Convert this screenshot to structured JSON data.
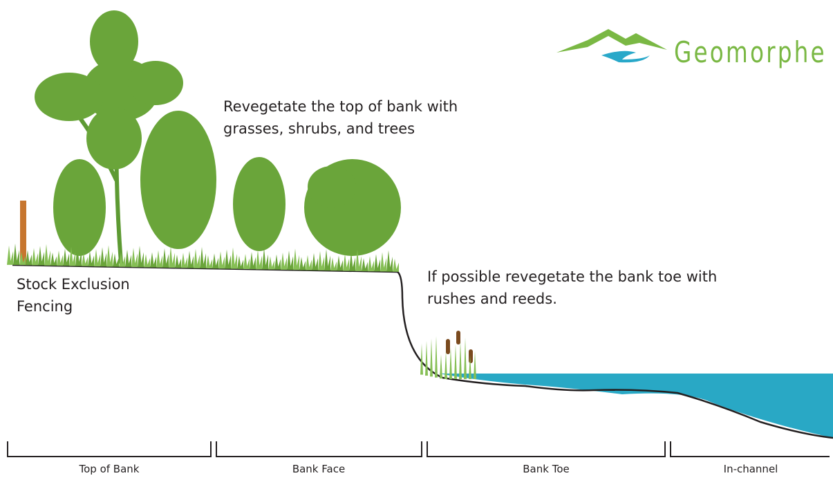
{
  "logo": {
    "text": "Geomorphe"
  },
  "annotations": [
    {
      "lines": [
        "Revegetate the top of bank with",
        "grasses, shrubs, and trees"
      ]
    },
    {
      "lines": [
        "If possible revegetate the bank toe with",
        "rushes and reeds."
      ]
    },
    {
      "lines": [
        "Stock Exclusion",
        "Fencing"
      ]
    }
  ],
  "zones": [
    {
      "label": "Top of Bank"
    },
    {
      "label": "Bank Face"
    },
    {
      "label": "Bank Toe"
    },
    {
      "label": "In-channel"
    }
  ]
}
